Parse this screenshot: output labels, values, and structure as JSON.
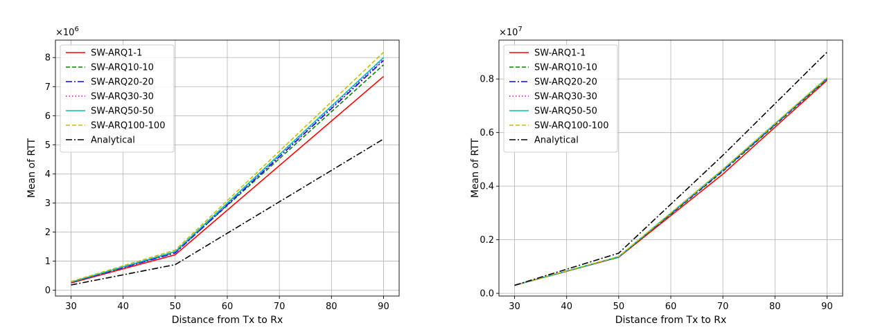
{
  "chart_data": [
    {
      "type": "line",
      "xlabel": "Distance from Tx to Rx",
      "ylabel": "Mean of RTT",
      "y_multiplier": "×10",
      "y_multiplier_exp": "6",
      "x": [
        30,
        50,
        90
      ],
      "xlim": [
        27,
        93
      ],
      "ylim": [
        -0.2,
        8.6
      ],
      "xticks": [
        30,
        40,
        50,
        60,
        70,
        80,
        90
      ],
      "yticks": [
        0,
        1,
        2,
        3,
        4,
        5,
        6,
        7,
        8
      ],
      "grid": true,
      "legend": "top-left",
      "series": [
        {
          "name": "SW-ARQ1-1",
          "color": "#ff0000",
          "dash": "solid",
          "values": [
            0.25,
            1.22,
            7.35
          ]
        },
        {
          "name": "SW-ARQ10-10",
          "color": "#008000",
          "dash": "dashed",
          "values": [
            0.27,
            1.3,
            7.75
          ]
        },
        {
          "name": "SW-ARQ20-20",
          "color": "#0000ff",
          "dash": "dashdot",
          "values": [
            0.27,
            1.28,
            7.9
          ]
        },
        {
          "name": "SW-ARQ30-30",
          "color": "#bf00bf",
          "dash": "dotted",
          "values": [
            0.27,
            1.3,
            7.95
          ]
        },
        {
          "name": "SW-ARQ50-50",
          "color": "#00bfbf",
          "dash": "solid",
          "values": [
            0.28,
            1.33,
            8.0
          ]
        },
        {
          "name": "SW-ARQ100-100",
          "color": "#bfbf00",
          "dash": "dashed",
          "values": [
            0.3,
            1.38,
            8.18
          ]
        },
        {
          "name": "Analytical",
          "color": "#000000",
          "dash": "dashdot",
          "values": [
            0.18,
            0.88,
            5.2
          ]
        }
      ]
    },
    {
      "type": "line",
      "xlabel": "Distance from Tx to Rx",
      "ylabel": "Mean of RTT",
      "y_multiplier": "×10",
      "y_multiplier_exp": "7",
      "x": [
        30,
        50,
        70,
        90
      ],
      "xlim": [
        27,
        93
      ],
      "ylim": [
        -0.01,
        0.945
      ],
      "xticks": [
        30,
        40,
        50,
        60,
        70,
        80,
        90
      ],
      "yticks": [
        0.0,
        0.2,
        0.4,
        0.6,
        0.8
      ],
      "ytick_labels": [
        "0.0",
        "0.2",
        "0.4",
        "0.6",
        "0.8"
      ],
      "grid": true,
      "legend": "top-left",
      "series": [
        {
          "name": "SW-ARQ1-1",
          "color": "#ff0000",
          "dash": "solid",
          "values": [
            0.03,
            0.135,
            0.445,
            0.795
          ]
        },
        {
          "name": "SW-ARQ10-10",
          "color": "#008000",
          "dash": "dashed",
          "values": [
            0.03,
            0.135,
            0.455,
            0.8
          ]
        },
        {
          "name": "SW-ARQ20-20",
          "color": "#0000ff",
          "dash": "dashdot",
          "values": [
            0.03,
            0.136,
            0.458,
            0.802
          ]
        },
        {
          "name": "SW-ARQ30-30",
          "color": "#bf00bf",
          "dash": "dotted",
          "values": [
            0.03,
            0.136,
            0.46,
            0.803
          ]
        },
        {
          "name": "SW-ARQ50-50",
          "color": "#00bfbf",
          "dash": "solid",
          "values": [
            0.03,
            0.137,
            0.462,
            0.804
          ]
        },
        {
          "name": "SW-ARQ100-100",
          "color": "#bfbf00",
          "dash": "dashed",
          "values": [
            0.03,
            0.137,
            0.463,
            0.805
          ]
        },
        {
          "name": "Analytical",
          "color": "#000000",
          "dash": "dashdot",
          "values": [
            0.03,
            0.15,
            0.515,
            0.9
          ]
        }
      ]
    }
  ]
}
